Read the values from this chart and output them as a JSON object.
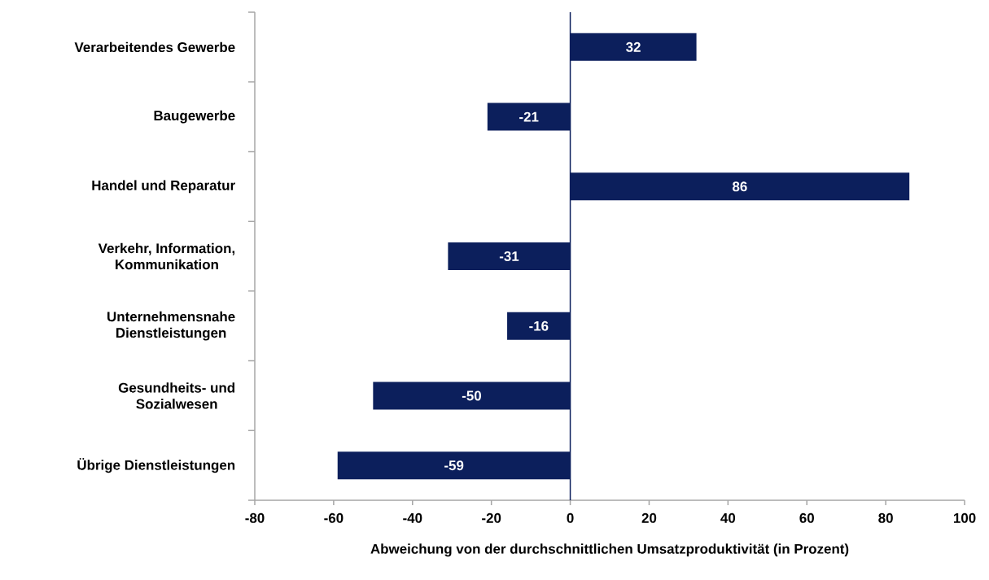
{
  "chart_data": {
    "type": "bar",
    "orientation": "horizontal",
    "categories": [
      "Verarbeitendes Gewerbe",
      "Baugewerbe",
      "Handel und Reparatur",
      "Verkehr, Information, Kommunikation",
      "Unternehmensnahe Dienstleistungen",
      "Gesundheits- und Sozialwesen",
      "Übrige Dienstleistungen"
    ],
    "values": [
      32,
      -21,
      86,
      -31,
      -16,
      -50,
      -59
    ],
    "color": "#0c1f5c",
    "data_labels": true,
    "xlabel": "Abweichung von der durchschnittlichen Umsatzproduktivität  (in Prozent)",
    "xlim": [
      -80,
      100
    ],
    "xticks": [
      -80,
      -60,
      -40,
      -20,
      0,
      20,
      40,
      60,
      80,
      100
    ],
    "grid": false,
    "ref_lines": [
      {
        "axis": "x",
        "value": 0,
        "color": "#0c1f5c"
      }
    ]
  }
}
